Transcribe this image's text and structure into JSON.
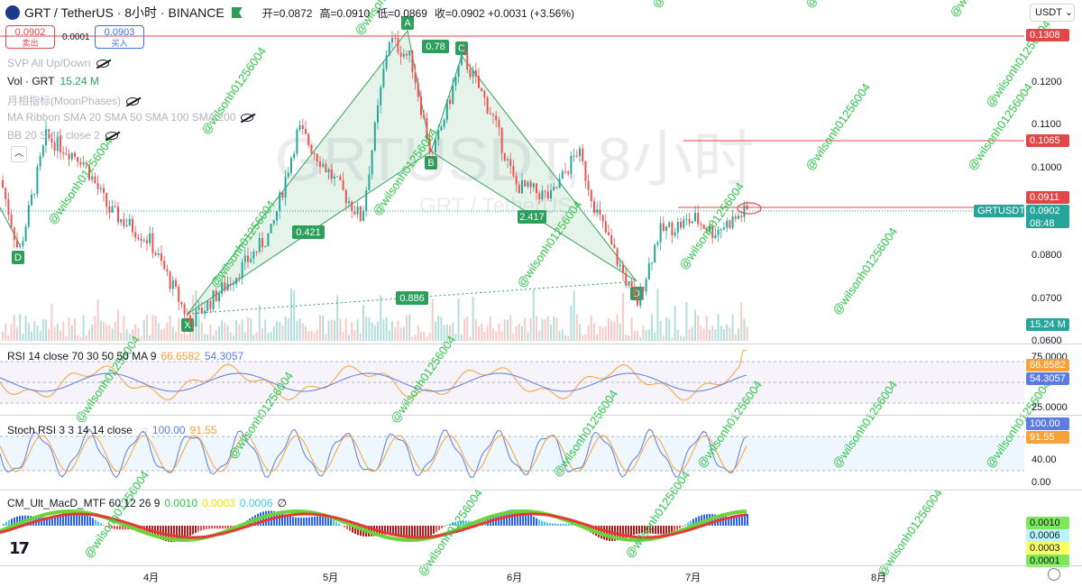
{
  "header": {
    "symbol": "GRT / TetherUS · 8小时 · BINANCE",
    "open": "开=0.0872",
    "high": "高=0.0910",
    "low": "低=0.0869",
    "close": "收=0.0902 +0.0031 (+3.56%)"
  },
  "trade": {
    "sell_price": "0.0902",
    "sell_label": "卖出",
    "spread": "0.0001",
    "buy_price": "0.0903",
    "buy_label": "买入"
  },
  "currency": "USDT",
  "indicators": [
    {
      "name": "SVP All Up/Down",
      "value": ""
    },
    {
      "name": "Vol · GRT",
      "value": "15.24 M"
    },
    {
      "name": "月相指标(MoonPhases)",
      "value": ""
    },
    {
      "name": "MA Ribbon SMA 20 SMA 50 SMA 100 SMA 200",
      "value": ""
    },
    {
      "name": "BB 20 SMA close 2",
      "value": ""
    }
  ],
  "watermark": {
    "title": "GRTUSDT, 8小时",
    "subtitle": "GRT / TetherUS",
    "user": "@wilsonh01256004"
  },
  "pattern_labels": {
    "X": "X",
    "A": "A",
    "B": "B",
    "C": "C",
    "D1": "D",
    "D2": "D",
    "r1": "0.421",
    "r2": "0.78",
    "r3": "0.886",
    "r4": "2.417"
  },
  "price_axis": {
    "ticks": [
      "0.1200",
      "0.1100",
      "0.1000",
      "0.0800",
      "0.0700",
      "0.0600"
    ],
    "resistance_1": "0.1308",
    "resistance_2": "0.1065",
    "marker": "0.0911",
    "ticker": "GRTUSDT",
    "last": "0.0902",
    "countdown": "08:48",
    "volume": "15.24 M"
  },
  "rsi": {
    "label": "RSI 14 close 70 30 50 50 MA 9",
    "v1": "66.6582",
    "v2": "54.3057",
    "ticks": [
      "75.0000",
      "25.0000"
    ]
  },
  "stoch": {
    "label": "Stoch RSI 3 3 14 14 close",
    "k": "100.00",
    "d": "91.55",
    "ticks": [
      "40.00",
      "0.00"
    ]
  },
  "macd": {
    "label": "CM_Ult_MacD_MTF 60 12 26 9",
    "v1": "0.0010",
    "v2": "0.0003",
    "v3": "0.0006",
    "v4": "∅",
    "ticks": [
      "0.0010",
      "0.0006",
      "0.0003",
      "0.0001"
    ]
  },
  "months": [
    "4月",
    "5月",
    "6月",
    "7月",
    "8月"
  ],
  "colors": {
    "up": "#26a69a",
    "down": "#ef5350",
    "pattern": "#2e9e5b",
    "resistance": "#e04848",
    "rsi": "#f7a13a",
    "rsi_ma": "#5b7ce0"
  }
}
